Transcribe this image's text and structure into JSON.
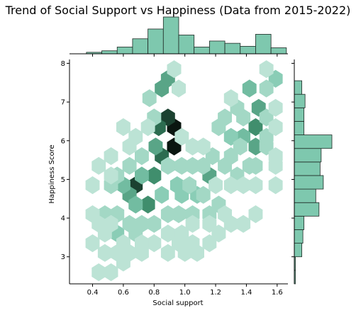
{
  "chart_data": {
    "type": "hexbin",
    "title": "Trend of Social Support vs Happiness (Data from 2015-2022)",
    "xlabel": "Social support",
    "ylabel": "Happiness Score",
    "xlim": [
      0.25,
      1.67
    ],
    "ylim": [
      2.3,
      8.1
    ],
    "xticks": [
      "0.4",
      "0.6",
      "0.8",
      "1.0",
      "1.2",
      "1.4",
      "1.6"
    ],
    "yticks": [
      "3",
      "4",
      "5",
      "6",
      "7",
      "8"
    ],
    "color": "#7ec8ae",
    "hexbins": [
      [
        0.93,
        6.35,
        10
      ],
      [
        0.93,
        5.85,
        10
      ],
      [
        0.89,
        6.6,
        9
      ],
      [
        0.85,
        5.6,
        8
      ],
      [
        0.83,
        6.35,
        8
      ],
      [
        0.68,
        4.85,
        9
      ],
      [
        0.76,
        4.35,
        7
      ],
      [
        0.64,
        4.6,
        6
      ],
      [
        0.8,
        5.1,
        7
      ],
      [
        0.85,
        7.35,
        6
      ],
      [
        0.89,
        7.6,
        6
      ],
      [
        0.81,
        5.85,
        6
      ],
      [
        1.16,
        5.1,
        6
      ],
      [
        1.48,
        6.85,
        6
      ],
      [
        1.42,
        7.35,
        5
      ],
      [
        1.46,
        5.85,
        6
      ],
      [
        1.46,
        6.35,
        7
      ],
      [
        1.38,
        6.1,
        5
      ],
      [
        1.3,
        6.1,
        4
      ],
      [
        1.59,
        7.6,
        4
      ],
      [
        0.72,
        5.1,
        5
      ],
      [
        0.6,
        4.85,
        5
      ],
      [
        0.68,
        4.35,
        5
      ],
      [
        0.98,
        4.6,
        4
      ],
      [
        1.08,
        4.6,
        4
      ],
      [
        0.56,
        3.6,
        4
      ],
      [
        0.68,
        3.6,
        3
      ],
      [
        1.22,
        4.35,
        3
      ],
      [
        1.34,
        5.1,
        3
      ],
      [
        1.26,
        5.35,
        3
      ],
      [
        1.42,
        5.35,
        3
      ],
      [
        1.53,
        7.35,
        3
      ],
      [
        1.38,
        6.6,
        3
      ],
      [
        1.53,
        6.6,
        3
      ],
      [
        1.22,
        6.35,
        3
      ],
      [
        0.8,
        6.6,
        3
      ],
      [
        0.76,
        6.35,
        2
      ],
      [
        0.77,
        7.1,
        3
      ],
      [
        0.89,
        5.35,
        3
      ],
      [
        0.95,
        4.85,
        4
      ],
      [
        1.03,
        4.85,
        3
      ],
      [
        1.12,
        4.6,
        3
      ],
      [
        0.85,
        4.6,
        4
      ],
      [
        0.72,
        3.85,
        3
      ],
      [
        0.8,
        3.85,
        3
      ],
      [
        0.64,
        3.85,
        3
      ],
      [
        0.56,
        4.1,
        3
      ],
      [
        0.48,
        4.1,
        3
      ],
      [
        0.52,
        4.85,
        3
      ],
      [
        0.56,
        5.1,
        3
      ],
      [
        0.64,
        5.35,
        3
      ],
      [
        0.72,
        5.6,
        3
      ],
      [
        0.64,
        5.85,
        2
      ],
      [
        0.98,
        5.35,
        3
      ],
      [
        1.05,
        5.35,
        3
      ],
      [
        1.12,
        5.35,
        3
      ],
      [
        1.18,
        5.6,
        3
      ],
      [
        1.3,
        5.6,
        3
      ],
      [
        1.36,
        5.85,
        3
      ],
      [
        1.46,
        5.35,
        3
      ],
      [
        1.53,
        5.85,
        3
      ],
      [
        1.53,
        6.1,
        3
      ],
      [
        1.26,
        6.6,
        3
      ],
      [
        1.34,
        6.85,
        3
      ],
      [
        1.3,
        7.1,
        2
      ],
      [
        1.53,
        7.85,
        2
      ],
      [
        0.93,
        7.85,
        2
      ],
      [
        0.96,
        7.35,
        2
      ],
      [
        1.12,
        5.85,
        2
      ],
      [
        1.05,
        4.1,
        3
      ],
      [
        1.16,
        4.1,
        3
      ],
      [
        0.89,
        4.1,
        3
      ],
      [
        0.96,
        4.1,
        3
      ],
      [
        0.4,
        4.1,
        2
      ],
      [
        0.44,
        3.85,
        2
      ],
      [
        0.52,
        3.85,
        2
      ],
      [
        0.48,
        3.6,
        2
      ],
      [
        0.6,
        3.35,
        2
      ],
      [
        0.8,
        3.35,
        2
      ],
      [
        0.89,
        3.6,
        2
      ],
      [
        0.98,
        3.6,
        2
      ],
      [
        1.05,
        3.85,
        2
      ],
      [
        1.16,
        3.85,
        2
      ],
      [
        1.26,
        4.1,
        2
      ],
      [
        1.38,
        3.85,
        2
      ],
      [
        1.22,
        3.6,
        2
      ],
      [
        1.3,
        4.85,
        2
      ],
      [
        1.38,
        4.85,
        2
      ],
      [
        1.46,
        4.85,
        2
      ],
      [
        1.46,
        4.1,
        2
      ],
      [
        0.44,
        5.35,
        2
      ],
      [
        0.4,
        4.85,
        2
      ],
      [
        0.52,
        5.6,
        2
      ],
      [
        0.52,
        5.1,
        2
      ],
      [
        1.05,
        5.85,
        2
      ],
      [
        1.16,
        3.35,
        2
      ],
      [
        1.05,
        3.35,
        2
      ],
      [
        0.96,
        3.35,
        2
      ],
      [
        0.72,
        3.35,
        2
      ],
      [
        0.56,
        3.1,
        2
      ],
      [
        0.64,
        3.1,
        2
      ],
      [
        0.72,
        3.1,
        2
      ],
      [
        0.89,
        3.1,
        2
      ],
      [
        0.48,
        3.1,
        2
      ],
      [
        0.6,
        2.85,
        2
      ],
      [
        0.44,
        2.6,
        2
      ],
      [
        0.52,
        2.6,
        2
      ],
      [
        0.4,
        3.35,
        2
      ],
      [
        0.6,
        6.35,
        2
      ],
      [
        1.59,
        4.85,
        2
      ],
      [
        1.59,
        6.85,
        2
      ],
      [
        1.59,
        6.35,
        2
      ],
      [
        1.59,
        5.6,
        2
      ],
      [
        1.59,
        5.35,
        2
      ],
      [
        1.08,
        3.1,
        2
      ],
      [
        1.0,
        3.1,
        2
      ],
      [
        1.2,
        4.85,
        2
      ],
      [
        1.3,
        3.85,
        2
      ],
      [
        0.68,
        6.1,
        2
      ],
      [
        0.98,
        6.1,
        2
      ]
    ],
    "x_hist": {
      "bins": [
        0.26,
        0.36,
        0.46,
        0.56,
        0.66,
        0.76,
        0.86,
        0.96,
        1.06,
        1.16,
        1.26,
        1.36,
        1.46,
        1.56,
        1.66
      ],
      "counts": [
        0,
        2,
        4,
        9,
        20,
        33,
        49,
        25,
        9,
        17,
        14,
        10,
        26,
        8
      ]
    },
    "y_hist": {
      "bins": [
        2.3,
        2.65,
        3.0,
        3.35,
        3.7,
        4.05,
        4.4,
        4.75,
        5.1,
        5.45,
        5.8,
        6.15,
        6.5,
        6.85,
        7.2,
        7.55,
        7.9
      ],
      "counts": [
        1,
        1,
        7,
        8,
        9,
        23,
        20,
        27,
        24,
        25,
        35,
        9,
        9,
        10,
        7,
        0
      ]
    }
  }
}
